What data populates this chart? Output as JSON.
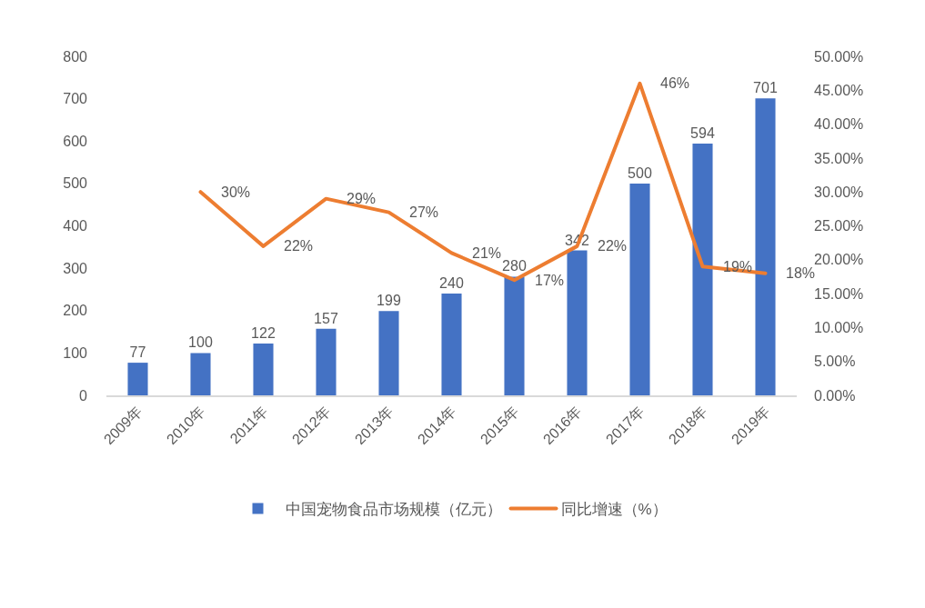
{
  "chart_data": {
    "type": "bar",
    "categories": [
      "2009年",
      "2010年",
      "2011年",
      "2012年",
      "2013年",
      "2014年",
      "2015年",
      "2016年",
      "2017年",
      "2018年",
      "2019年"
    ],
    "series": [
      {
        "name": "中国宠物食品市场规模（亿元）",
        "color": "#4472c4",
        "values": [
          77,
          100,
          122,
          157,
          199,
          240,
          280,
          342,
          500,
          594,
          701
        ],
        "value_labels": [
          "77",
          "100",
          "122",
          "157",
          "199",
          "240",
          "280",
          "342",
          "500",
          "594",
          "701"
        ]
      },
      {
        "name": "同比增速（%）",
        "type": "line",
        "axis": "y2",
        "color": "#ed7d31",
        "values": [
          null,
          30,
          22,
          29,
          27,
          21,
          17,
          22,
          46,
          19,
          18
        ],
        "value_labels": [
          null,
          "30%",
          "22%",
          "29%",
          "27%",
          "21%",
          "17%",
          "22%",
          "46%",
          "19%",
          "18%"
        ]
      }
    ],
    "ylim": [
      0,
      800
    ],
    "yticks": [
      0,
      100,
      200,
      300,
      400,
      500,
      600,
      700,
      800
    ],
    "y2lim": [
      0,
      50
    ],
    "y2ticks": [
      {
        "value": 0,
        "label": "0.00%"
      },
      {
        "value": 5,
        "label": "5.00%"
      },
      {
        "value": 10,
        "label": "10.00%"
      },
      {
        "value": 15,
        "label": "15.00%"
      },
      {
        "value": 20,
        "label": "20.00%"
      },
      {
        "value": 25,
        "label": "25.00%"
      },
      {
        "value": 30,
        "label": "30.00%"
      },
      {
        "value": 35,
        "label": "35.00%"
      },
      {
        "value": 40,
        "label": "40.00%"
      },
      {
        "value": 45,
        "label": "45.00%"
      },
      {
        "value": 50,
        "label": "50.00%"
      }
    ],
    "grid": false,
    "legend": "bottom",
    "marker": "none",
    "line_style": "solid"
  }
}
